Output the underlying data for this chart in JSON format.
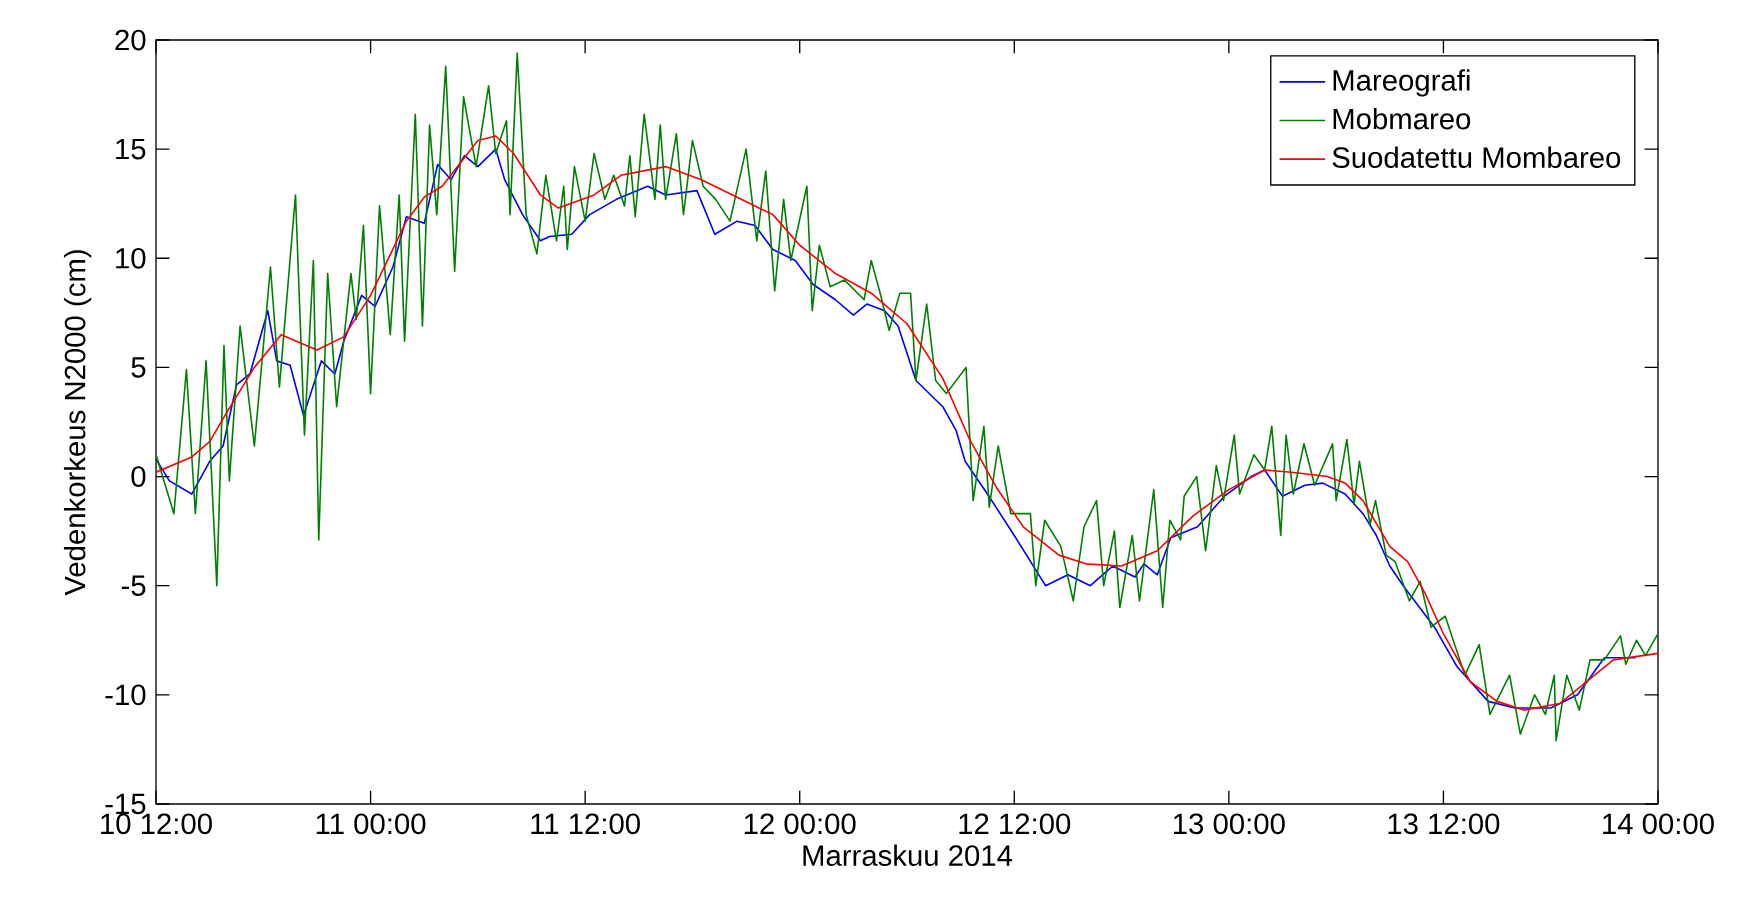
{
  "chart_data": {
    "type": "line",
    "xlabel": "Marraskuu 2014",
    "ylabel": "Vedenkorkeus N2000 (cm)",
    "xlim": [
      "2014-11-10T12:00",
      "2014-11-14T00:00"
    ],
    "ylim": [
      -15,
      20
    ],
    "xticks": [
      {
        "value": "2014-11-10T12:00",
        "label": "10 12:00"
      },
      {
        "value": "2014-11-11T00:00",
        "label": "11 00:00"
      },
      {
        "value": "2014-11-11T12:00",
        "label": "11 12:00"
      },
      {
        "value": "2014-11-12T00:00",
        "label": "12 00:00"
      },
      {
        "value": "2014-11-12T12:00",
        "label": "12 12:00"
      },
      {
        "value": "2014-11-13T00:00",
        "label": "13 00:00"
      },
      {
        "value": "2014-11-13T12:00",
        "label": "13 12:00"
      },
      {
        "value": "2014-11-14T00:00",
        "label": "14 00:00"
      }
    ],
    "yticks": [
      -15,
      -10,
      -5,
      0,
      5,
      10,
      15,
      20
    ],
    "grid": false,
    "legend": "top right",
    "series": [
      {
        "name": "Mareografi",
        "color": "#0000ff",
        "x": [
          "2014-11-10T12:00",
          "2014-11-10T12:45",
          "2014-11-10T14:00",
          "2014-11-10T15:00",
          "2014-11-10T15:45",
          "2014-11-10T16:30",
          "2014-11-10T17:15",
          "2014-11-10T18:15",
          "2014-11-10T18:45",
          "2014-11-10T19:30",
          "2014-11-10T20:15",
          "2014-11-10T21:15",
          "2014-11-10T22:00",
          "2014-11-10T22:30",
          "2014-11-10T23:30",
          "2014-11-11T00:15",
          "2014-11-11T01:15",
          "2014-11-11T02:00",
          "2014-11-11T03:00",
          "2014-11-11T03:45",
          "2014-11-11T04:30",
          "2014-11-11T05:15",
          "2014-11-11T06:00",
          "2014-11-11T07:00",
          "2014-11-11T07:30",
          "2014-11-11T08:30",
          "2014-11-11T09:30",
          "2014-11-11T10:00",
          "2014-11-11T11:15",
          "2014-11-11T12:15",
          "2014-11-11T13:45",
          "2014-11-11T15:30",
          "2014-11-11T16:30",
          "2014-11-11T18:15",
          "2014-11-11T19:15",
          "2014-11-11T20:30",
          "2014-11-11T21:30",
          "2014-11-11T22:30",
          "2014-11-11T23:45",
          "2014-11-12T00:45",
          "2014-11-12T02:00",
          "2014-11-12T03:00",
          "2014-11-12T03:45",
          "2014-11-12T04:45",
          "2014-11-12T05:30",
          "2014-11-12T06:30",
          "2014-11-12T08:00",
          "2014-11-12T08:45",
          "2014-11-12T09:15",
          "2014-11-12T10:30",
          "2014-11-12T12:00",
          "2014-11-12T13:45",
          "2014-11-12T15:00",
          "2014-11-12T16:15",
          "2014-11-12T17:30",
          "2014-11-12T18:45",
          "2014-11-12T19:15",
          "2014-11-12T20:00",
          "2014-11-12T20:45",
          "2014-11-12T22:15",
          "2014-11-12T23:45",
          "2014-11-13T01:15",
          "2014-11-13T02:00",
          "2014-11-13T03:00",
          "2014-11-13T04:15",
          "2014-11-13T05:15",
          "2014-11-13T06:30",
          "2014-11-13T07:30",
          "2014-11-13T08:15",
          "2014-11-13T09:00",
          "2014-11-13T09:45",
          "2014-11-13T11:30",
          "2014-11-13T12:45",
          "2014-11-13T14:30",
          "2014-11-13T16:00",
          "2014-11-13T18:00",
          "2014-11-13T19:30",
          "2014-11-13T21:00",
          "2014-11-13T22:45"
        ],
        "values": [
          0.8,
          -0.2,
          -0.8,
          0.7,
          1.4,
          4.2,
          4.7,
          7.6,
          5.3,
          5.1,
          2.8,
          5.3,
          4.7,
          6.2,
          8.3,
          7.8,
          9.6,
          11.9,
          11.6,
          14.3,
          13.6,
          14.7,
          14.2,
          15.0,
          13.6,
          12.0,
          10.8,
          11.0,
          11.1,
          12.0,
          12.7,
          13.3,
          12.9,
          13.1,
          11.1,
          11.7,
          11.5,
          10.4,
          9.9,
          8.8,
          8.1,
          7.4,
          7.9,
          7.6,
          6.9,
          4.4,
          3.2,
          2.1,
          0.7,
          -0.8,
          -2.7,
          -5.0,
          -4.5,
          -5.0,
          -4.1,
          -4.6,
          -4.0,
          -4.5,
          -2.8,
          -2.3,
          -0.9,
          0.0,
          0.3,
          -0.9,
          -0.4,
          -0.3,
          -0.8,
          -1.7,
          -2.7,
          -4.1,
          -5.0,
          -6.9,
          -8.7,
          -10.3,
          -10.6,
          -10.6,
          -10.0,
          -8.3,
          -8.3
        ]
      },
      {
        "name": "Mobmareo",
        "color": "#008000",
        "x": [
          "2014-11-10T12:00",
          "2014-11-10T13:00",
          "2014-11-10T13:42",
          "2014-11-10T14:12",
          "2014-11-10T14:48",
          "2014-11-10T15:24",
          "2014-11-10T15:48",
          "2014-11-10T16:06",
          "2014-11-10T16:42",
          "2014-11-10T17:30",
          "2014-11-10T18:24",
          "2014-11-10T18:54",
          "2014-11-10T19:48",
          "2014-11-10T20:18",
          "2014-11-10T20:48",
          "2014-11-10T21:06",
          "2014-11-10T21:36",
          "2014-11-10T22:06",
          "2014-11-10T22:54",
          "2014-11-10T23:12",
          "2014-11-10T23:36",
          "2014-11-11T00:00",
          "2014-11-11T00:30",
          "2014-11-11T01:06",
          "2014-11-11T01:36",
          "2014-11-11T01:54",
          "2014-11-11T02:30",
          "2014-11-11T02:54",
          "2014-11-11T03:18",
          "2014-11-11T03:42",
          "2014-11-11T04:12",
          "2014-11-11T04:42",
          "2014-11-11T05:12",
          "2014-11-11T05:54",
          "2014-11-11T06:36",
          "2014-11-11T07:00",
          "2014-11-11T07:36",
          "2014-11-11T07:48",
          "2014-11-11T08:12",
          "2014-11-11T08:42",
          "2014-11-11T09:18",
          "2014-11-11T09:48",
          "2014-11-11T10:24",
          "2014-11-11T10:48",
          "2014-11-11T11:00",
          "2014-11-11T11:24",
          "2014-11-11T12:00",
          "2014-11-11T12:30",
          "2014-11-11T13:06",
          "2014-11-11T13:36",
          "2014-11-11T14:12",
          "2014-11-11T14:30",
          "2014-11-11T14:48",
          "2014-11-11T15:18",
          "2014-11-11T15:54",
          "2014-11-11T16:12",
          "2014-11-11T16:30",
          "2014-11-11T17:06",
          "2014-11-11T17:30",
          "2014-11-11T18:00",
          "2014-11-11T18:36",
          "2014-11-11T19:18",
          "2014-11-11T20:06",
          "2014-11-11T21:00",
          "2014-11-11T21:36",
          "2014-11-11T22:06",
          "2014-11-11T22:36",
          "2014-11-11T23:06",
          "2014-11-11T23:30",
          "2014-11-12T00:24",
          "2014-11-12T00:42",
          "2014-11-12T01:06",
          "2014-11-12T01:42",
          "2014-11-12T02:30",
          "2014-11-12T03:36",
          "2014-11-12T04:00",
          "2014-11-12T04:30",
          "2014-11-12T05:00",
          "2014-11-12T05:36",
          "2014-11-12T06:12",
          "2014-11-12T06:30",
          "2014-11-12T07:06",
          "2014-11-12T07:36",
          "2014-11-12T08:12",
          "2014-11-12T09:18",
          "2014-11-12T09:42",
          "2014-11-12T10:18",
          "2014-11-12T10:36",
          "2014-11-12T11:06",
          "2014-11-12T11:48",
          "2014-11-12T12:54",
          "2014-11-12T13:12",
          "2014-11-12T13:42",
          "2014-11-12T14:36",
          "2014-11-12T15:18",
          "2014-11-12T15:54",
          "2014-11-12T16:36",
          "2014-11-12T17:00",
          "2014-11-12T17:36",
          "2014-11-12T17:54",
          "2014-11-12T18:36",
          "2014-11-12T19:00",
          "2014-11-12T19:48",
          "2014-11-12T20:18",
          "2014-11-12T20:42",
          "2014-11-12T21:18",
          "2014-11-12T21:30",
          "2014-11-12T22:12",
          "2014-11-12T22:42",
          "2014-11-12T23:18",
          "2014-11-12T23:42",
          "2014-11-13T00:18",
          "2014-11-13T00:36",
          "2014-11-13T01:24",
          "2014-11-13T02:00",
          "2014-11-13T02:24",
          "2014-11-13T02:54",
          "2014-11-13T03:12",
          "2014-11-13T03:36",
          "2014-11-13T04:12",
          "2014-11-13T04:48",
          "2014-11-13T05:48",
          "2014-11-13T06:00",
          "2014-11-13T06:36",
          "2014-11-13T07:00",
          "2014-11-13T07:18",
          "2014-11-13T07:54",
          "2014-11-13T08:12",
          "2014-11-13T08:48",
          "2014-11-13T09:18",
          "2014-11-13T10:06",
          "2014-11-13T10:42",
          "2014-11-13T11:18",
          "2014-11-13T12:06",
          "2014-11-13T13:12",
          "2014-11-13T14:00",
          "2014-11-13T14:36",
          "2014-11-13T15:42",
          "2014-11-13T16:18",
          "2014-11-13T17:06",
          "2014-11-13T17:42",
          "2014-11-13T18:12",
          "2014-11-13T18:18",
          "2014-11-13T18:54",
          "2014-11-13T19:36",
          "2014-11-13T20:12",
          "2014-11-13T21:00",
          "2014-11-13T21:54",
          "2014-11-13T22:12",
          "2014-11-13T22:48",
          "2014-11-13T23:18",
          "2014-11-14T00:00"
        ],
        "values": [
          1.0,
          -1.7,
          4.9,
          -1.7,
          5.3,
          -5.0,
          6.0,
          -0.2,
          6.9,
          1.4,
          9.6,
          4.1,
          12.9,
          1.9,
          9.9,
          -2.9,
          9.3,
          3.2,
          9.3,
          7.2,
          11.5,
          3.8,
          12.4,
          6.5,
          12.9,
          6.2,
          16.6,
          6.9,
          16.1,
          12.0,
          18.8,
          9.4,
          17.4,
          14.2,
          17.9,
          14.8,
          16.3,
          12.0,
          19.4,
          12.0,
          10.2,
          13.8,
          10.8,
          13.3,
          10.4,
          14.2,
          11.7,
          14.8,
          12.7,
          13.8,
          12.4,
          14.7,
          11.9,
          16.6,
          12.7,
          16.1,
          12.7,
          15.7,
          12.0,
          15.4,
          13.3,
          12.7,
          11.7,
          15.0,
          10.8,
          14.0,
          8.5,
          12.7,
          9.9,
          13.3,
          7.6,
          10.6,
          8.7,
          9.0,
          8.1,
          9.9,
          8.4,
          6.7,
          8.4,
          8.4,
          4.4,
          7.9,
          4.4,
          3.8,
          5.0,
          -1.1,
          2.3,
          -1.4,
          1.4,
          -1.7,
          -1.7,
          -5.0,
          -2.0,
          -3.2,
          -5.7,
          -2.3,
          -1.1,
          -5.0,
          -2.5,
          -6.0,
          -2.7,
          -5.7,
          -0.6,
          -6.0,
          -2.0,
          -2.9,
          -0.9,
          0.0,
          -3.4,
          0.5,
          -1.1,
          1.9,
          -0.8,
          1.0,
          0.3,
          2.3,
          -2.7,
          1.9,
          -0.8,
          1.5,
          -0.4,
          1.5,
          -1.1,
          1.7,
          -1.3,
          0.7,
          -2.2,
          -1.1,
          -3.6,
          -3.9,
          -5.7,
          -4.8,
          -6.9,
          -6.4,
          -9.1,
          -7.7,
          -10.9,
          -9.1,
          -11.8,
          -10.0,
          -10.9,
          -9.1,
          -12.1,
          -9.1,
          -10.7,
          -8.4,
          -8.4,
          -7.3,
          -8.6,
          -7.5,
          -8.2,
          -7.2
        ]
      },
      {
        "name": "Suodatettu Mombareo",
        "color": "#ff0000",
        "x": [
          "2014-11-10T12:00",
          "2014-11-10T14:00",
          "2014-11-10T15:00",
          "2014-11-10T16:00",
          "2014-11-10T17:30",
          "2014-11-10T19:00",
          "2014-11-10T21:00",
          "2014-11-10T22:30",
          "2014-11-11T00:00",
          "2014-11-11T02:00",
          "2014-11-11T03:00",
          "2014-11-11T04:00",
          "2014-11-11T06:00",
          "2014-11-11T07:00",
          "2014-11-11T08:00",
          "2014-11-11T09:30",
          "2014-11-11T10:30",
          "2014-11-11T12:30",
          "2014-11-11T14:00",
          "2014-11-11T16:30",
          "2014-11-11T18:30",
          "2014-11-11T20:30",
          "2014-11-11T22:30",
          "2014-11-12T00:00",
          "2014-11-12T02:00",
          "2014-11-12T04:00",
          "2014-11-12T06:00",
          "2014-11-12T08:00",
          "2014-11-12T09:30",
          "2014-11-12T11:00",
          "2014-11-12T12:30",
          "2014-11-12T14:30",
          "2014-11-12T16:00",
          "2014-11-12T18:00",
          "2014-11-12T20:00",
          "2014-11-12T22:00",
          "2014-11-13T00:00",
          "2014-11-13T02:00",
          "2014-11-13T03:30",
          "2014-11-13T05:30",
          "2014-11-13T06:30",
          "2014-11-13T07:30",
          "2014-11-13T09:00",
          "2014-11-13T10:00",
          "2014-11-13T11:00",
          "2014-11-13T12:00",
          "2014-11-13T13:30",
          "2014-11-13T15:00",
          "2014-11-13T16:30",
          "2014-11-13T18:30",
          "2014-11-13T20:00",
          "2014-11-13T21:30",
          "2014-11-14T00:00"
        ],
        "values": [
          0.2,
          0.9,
          1.6,
          3.0,
          5.0,
          6.5,
          5.8,
          6.4,
          8.3,
          11.7,
          12.8,
          13.3,
          15.4,
          15.6,
          14.8,
          12.9,
          12.3,
          12.9,
          13.8,
          14.2,
          13.6,
          12.8,
          12.0,
          10.6,
          9.3,
          8.4,
          7.0,
          4.5,
          1.7,
          -0.5,
          -2.3,
          -3.6,
          -4.0,
          -4.1,
          -3.4,
          -1.8,
          -0.6,
          0.3,
          0.2,
          0.0,
          -0.3,
          -1.1,
          -3.2,
          -3.9,
          -5.4,
          -7.2,
          -9.4,
          -10.3,
          -10.7,
          -10.4,
          -9.4,
          -8.4,
          -8.1
        ]
      }
    ]
  }
}
